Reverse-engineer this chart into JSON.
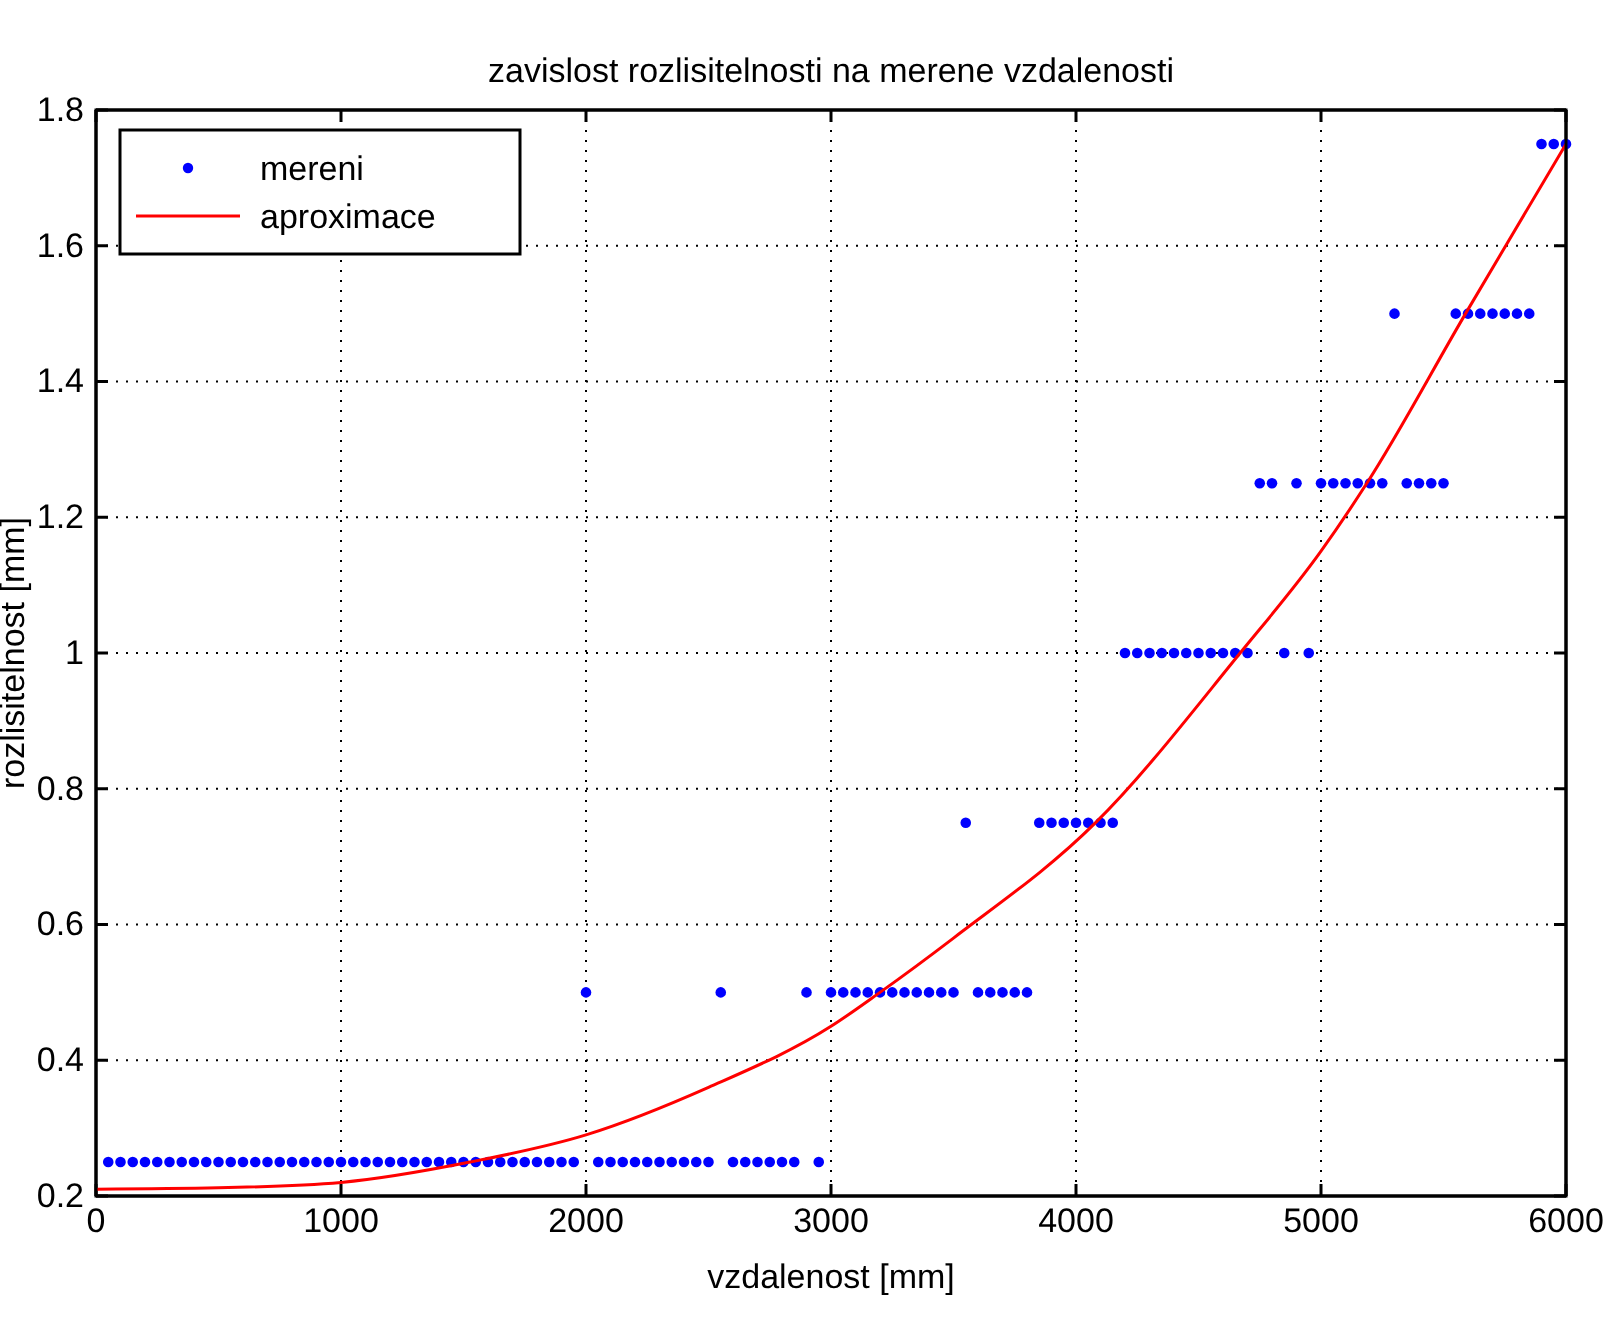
{
  "chart_data": {
    "type": "scatter",
    "title": "zavislost rozlisitelnosti na merene vzdalenosti",
    "xlabel": "vzdalenost [mm]",
    "ylabel": "rozlisitelnost [mm]",
    "xlim": [
      0,
      6000
    ],
    "ylim": [
      0.2,
      1.8
    ],
    "xticks": [
      0,
      1000,
      2000,
      3000,
      4000,
      5000,
      6000
    ],
    "yticks": [
      0.2,
      0.4,
      0.6,
      0.8,
      1,
      1.2,
      1.4,
      1.6,
      1.8
    ],
    "grid": true,
    "legend": "top left",
    "series": [
      {
        "name": "mereni",
        "color": "#0000ff",
        "marker": "circle",
        "x": [
          50,
          100,
          150,
          200,
          250,
          300,
          350,
          400,
          450,
          500,
          550,
          600,
          650,
          700,
          750,
          800,
          850,
          900,
          950,
          1000,
          1050,
          1100,
          1150,
          1200,
          1250,
          1300,
          1350,
          1400,
          1450,
          1500,
          1550,
          1600,
          1650,
          1700,
          1750,
          1800,
          1850,
          1900,
          1950,
          2000,
          2050,
          2100,
          2150,
          2200,
          2250,
          2300,
          2350,
          2400,
          2450,
          2500,
          2550,
          2600,
          2650,
          2700,
          2750,
          2800,
          2850,
          2900,
          2950,
          3000,
          3050,
          3100,
          3150,
          3200,
          3250,
          3300,
          3350,
          3400,
          3450,
          3500,
          3550,
          3600,
          3650,
          3700,
          3750,
          3800,
          3850,
          3900,
          3950,
          4000,
          4050,
          4100,
          4150,
          4200,
          4250,
          4300,
          4350,
          4400,
          4450,
          4500,
          4550,
          4600,
          4650,
          4700,
          4750,
          4800,
          4850,
          4900,
          4950,
          5000,
          5050,
          5100,
          5150,
          5200,
          5250,
          5300,
          5350,
          5400,
          5450,
          5500,
          5550,
          5600,
          5650,
          5700,
          5750,
          5800,
          5850,
          5900,
          5950,
          6000
        ],
        "values": [
          0.25,
          0.25,
          0.25,
          0.25,
          0.25,
          0.25,
          0.25,
          0.25,
          0.25,
          0.25,
          0.25,
          0.25,
          0.25,
          0.25,
          0.25,
          0.25,
          0.25,
          0.25,
          0.25,
          0.25,
          0.25,
          0.25,
          0.25,
          0.25,
          0.25,
          0.25,
          0.25,
          0.25,
          0.25,
          0.25,
          0.25,
          0.25,
          0.25,
          0.25,
          0.25,
          0.25,
          0.25,
          0.25,
          0.25,
          0.5,
          0.25,
          0.25,
          0.25,
          0.25,
          0.25,
          0.25,
          0.25,
          0.25,
          0.25,
          0.25,
          0.5,
          0.25,
          0.25,
          0.25,
          0.25,
          0.25,
          0.25,
          0.5,
          0.25,
          0.5,
          0.5,
          0.5,
          0.5,
          0.5,
          0.5,
          0.5,
          0.5,
          0.5,
          0.5,
          0.5,
          0.75,
          0.5,
          0.5,
          0.5,
          0.5,
          0.5,
          0.75,
          0.75,
          0.75,
          0.75,
          0.75,
          0.75,
          0.75,
          1,
          1,
          1,
          1,
          1,
          1,
          1,
          1,
          1,
          1,
          1,
          1.25,
          1.25,
          1,
          1.25,
          1,
          1.25,
          1.25,
          1.25,
          1.25,
          1.25,
          1.25,
          1.5,
          1.25,
          1.25,
          1.25,
          1.25,
          1.5,
          1.5,
          1.5,
          1.5,
          1.5,
          1.5,
          1.5,
          1.75,
          1.75,
          1.75
        ]
      },
      {
        "name": "aproximace",
        "type": "line",
        "color": "#ff0000",
        "marker": "none",
        "line_style": "solid",
        "x": [
          0,
          500,
          1000,
          1527,
          2000,
          2500,
          3000,
          3200,
          3500,
          4080,
          4670,
          5000,
          5187,
          5590,
          6000
        ],
        "values": [
          0.21,
          0.212,
          0.22,
          0.25,
          0.29,
          0.36,
          0.45,
          0.5,
          0.58,
          0.75,
          1,
          1.15,
          1.25,
          1.5,
          1.75
        ]
      }
    ]
  }
}
